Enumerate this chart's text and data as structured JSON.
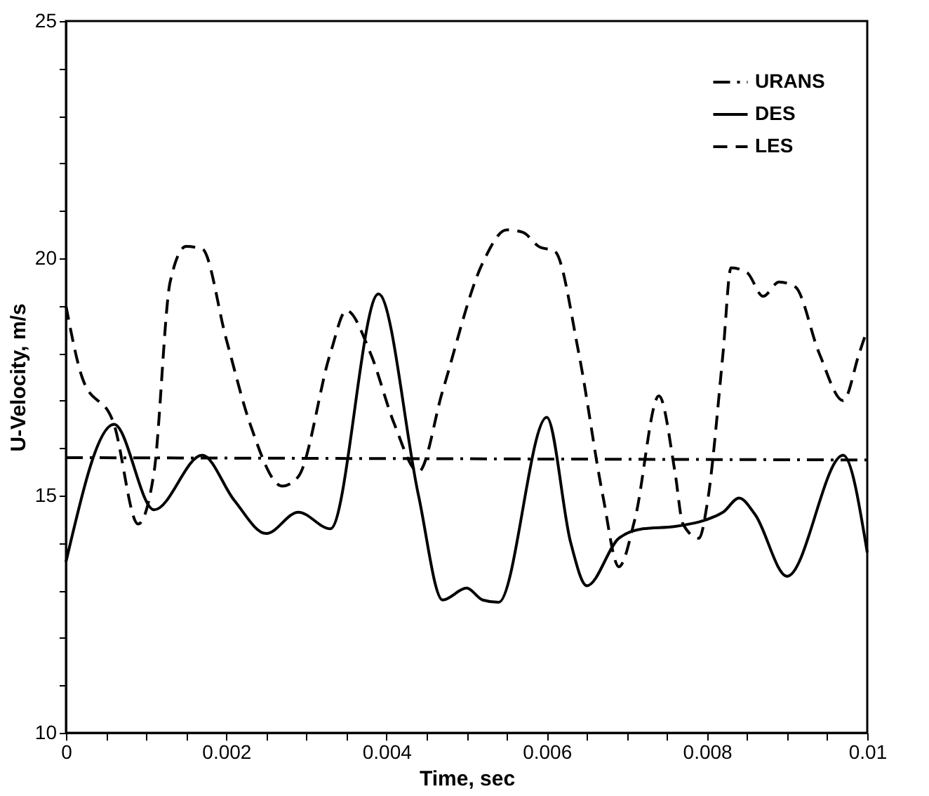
{
  "chart_data": {
    "type": "line",
    "xlabel": "Time, sec",
    "ylabel": "U-Velocity, m/s",
    "xlim": [
      0,
      0.01
    ],
    "ylim": [
      10,
      25
    ],
    "xticks": [
      0,
      {
        "value": 0.0005,
        "label": null
      },
      {
        "value": 0.001,
        "label": null
      },
      {
        "value": 0.0015,
        "label": null
      },
      0.002,
      {
        "value": 0.0025,
        "label": null
      },
      {
        "value": 0.003,
        "label": null
      },
      {
        "value": 0.0035,
        "label": null
      },
      0.004,
      {
        "value": 0.0045,
        "label": null
      },
      {
        "value": 0.005,
        "label": null
      },
      {
        "value": 0.0055,
        "label": null
      },
      0.006,
      {
        "value": 0.0065,
        "label": null
      },
      {
        "value": 0.007,
        "label": null
      },
      {
        "value": 0.0075,
        "label": null
      },
      0.008,
      {
        "value": 0.0085,
        "label": null
      },
      {
        "value": 0.009,
        "label": null
      },
      {
        "value": 0.0095,
        "label": null
      },
      0.01
    ],
    "yticks": [
      10,
      {
        "value": 11,
        "label": null
      },
      {
        "value": 12,
        "label": null
      },
      {
        "value": 13,
        "label": null
      },
      {
        "value": 14,
        "label": null
      },
      15,
      {
        "value": 16,
        "label": null
      },
      {
        "value": 17,
        "label": null
      },
      {
        "value": 18,
        "label": null
      },
      {
        "value": 19,
        "label": null
      },
      20,
      {
        "value": 21,
        "label": null
      },
      {
        "value": 22,
        "label": null
      },
      {
        "value": 23,
        "label": null
      },
      {
        "value": 24,
        "label": null
      },
      25
    ],
    "legend": "top right",
    "grid": false,
    "marker": "none",
    "series": [
      {
        "name": "URANS",
        "color": "#000000",
        "line_style": "dashdot",
        "x": [
          0,
          0.01
        ],
        "values": [
          15.8,
          15.75
        ]
      },
      {
        "name": "DES",
        "color": "#000000",
        "line_style": "solid",
        "x": [
          0,
          0.0006,
          0.0011,
          0.0017,
          0.0021,
          0.0025,
          0.0029,
          0.0033,
          0.0039,
          0.0044,
          0.0047,
          0.005,
          0.0052,
          0.0054,
          0.006,
          0.0063,
          0.0065,
          0.0069,
          0.0072,
          0.0076,
          0.0082,
          0.0084,
          0.0086,
          0.009,
          0.0097,
          0.01
        ],
        "values": [
          13.6,
          16.5,
          14.7,
          15.85,
          14.9,
          14.2,
          14.65,
          14.3,
          19.25,
          15.0,
          12.8,
          13.05,
          12.8,
          12.75,
          16.65,
          14.0,
          13.1,
          14.1,
          14.3,
          14.35,
          14.65,
          14.95,
          14.6,
          13.3,
          15.85,
          13.8
        ]
      },
      {
        "name": "LES",
        "color": "#000000",
        "line_style": "dashed",
        "x": [
          0,
          0.0002,
          0.0006,
          0.0009,
          0.0011,
          0.0013,
          0.0015,
          0.0017,
          0.002,
          0.0023,
          0.0027,
          0.0029,
          0.0033,
          0.0035,
          0.0038,
          0.0041,
          0.0044,
          0.0047,
          0.0052,
          0.0055,
          0.0057,
          0.0059,
          0.0061,
          0.0064,
          0.0067,
          0.0069,
          0.0071,
          0.0074,
          0.0076,
          0.0077,
          0.0079,
          0.008,
          0.0082,
          0.0083,
          0.0085,
          0.0087,
          0.0089,
          0.0091,
          0.0094,
          0.0097,
          0.0099,
          0.01
        ],
        "values": [
          19.0,
          17.5,
          16.5,
          14.4,
          15.5,
          19.5,
          20.25,
          20.2,
          18.3,
          16.5,
          15.2,
          15.4,
          18.0,
          18.9,
          18.0,
          16.5,
          15.5,
          17.2,
          19.9,
          20.6,
          20.55,
          20.25,
          20.15,
          18.0,
          15.0,
          13.5,
          14.5,
          17.1,
          15.5,
          14.4,
          14.1,
          14.8,
          18.0,
          19.8,
          19.7,
          19.2,
          19.5,
          19.4,
          18.0,
          17.0,
          18.0,
          18.5
        ]
      }
    ]
  }
}
